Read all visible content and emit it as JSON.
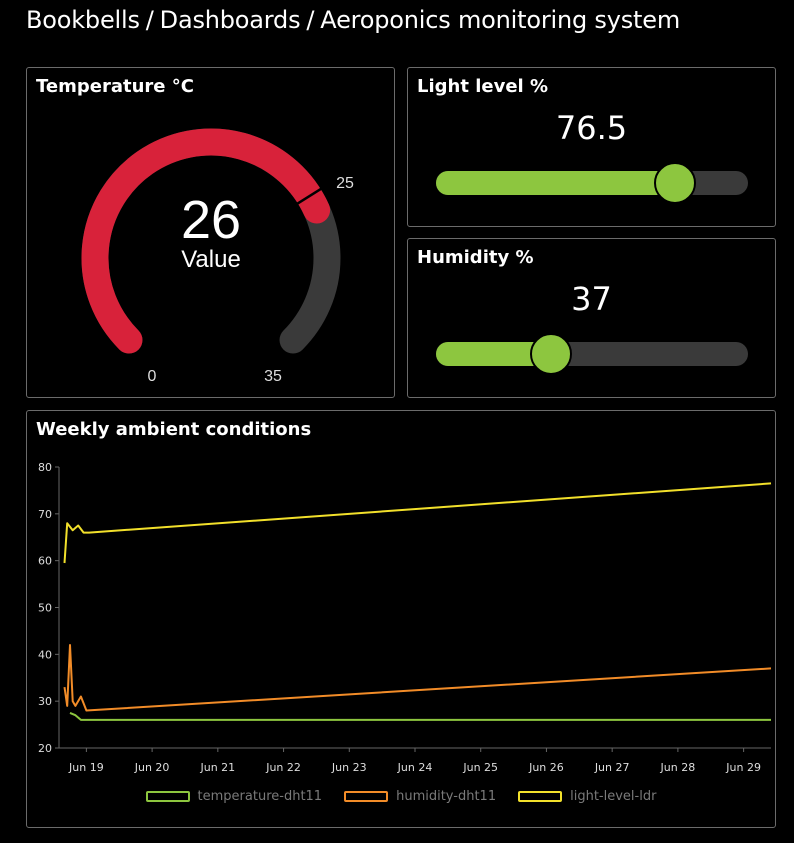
{
  "breadcrumb": {
    "items": [
      "Bookbells",
      "Dashboards",
      "Aeroponics monitoring system"
    ],
    "separator": "/"
  },
  "temperature": {
    "title": "Temperature °C",
    "value": "26",
    "caption": "Value",
    "min_label": "0",
    "max_label": "35",
    "threshold_label": "25",
    "min": 0,
    "max": 35,
    "current": 26,
    "threshold": 25,
    "colors": {
      "fill": "#d8223a",
      "track": "#3a3a3a",
      "marker": "#000000"
    }
  },
  "light": {
    "title": "Light level %",
    "value": "76.5",
    "level": 76.5,
    "color": "#8dc63f"
  },
  "humidity": {
    "title": "Humidity %",
    "value": "37",
    "level": 37,
    "color": "#8dc63f"
  },
  "chart_data": {
    "type": "line",
    "title": "Weekly ambient conditions",
    "xlabel": "",
    "ylabel": "",
    "ylim": [
      20,
      80
    ],
    "yticks": [
      "20",
      "30",
      "40",
      "50",
      "60",
      "70",
      "80"
    ],
    "xticks": [
      "Jun 19",
      "Jun 20",
      "Jun 21",
      "Jun 22",
      "Jun 23",
      "Jun 24",
      "Jun 25",
      "Jun 26",
      "Jun 27",
      "Jun 28",
      "Jun 29"
    ],
    "grid": false,
    "legend_position": "bottom",
    "series": [
      {
        "name": "temperature-dht11",
        "color": "#8dc63f",
        "points": [
          [
            "Jun 18 18:00",
            27.5
          ],
          [
            "Jun 18 20:00",
            27.0
          ],
          [
            "Jun 18 22:00",
            26.0
          ],
          [
            "Jun 19 12:00",
            26.0
          ],
          [
            "Jun 29 10:00",
            26.0
          ]
        ]
      },
      {
        "name": "humidity-dht11",
        "color": "#f28c28",
        "points": [
          [
            "Jun 18 16:00",
            33.0
          ],
          [
            "Jun 18 17:00",
            29.0
          ],
          [
            "Jun 18 18:00",
            42.0
          ],
          [
            "Jun 18 19:00",
            30.0
          ],
          [
            "Jun 18 20:00",
            29.0
          ],
          [
            "Jun 18 22:00",
            31.0
          ],
          [
            "Jun 19 00:00",
            28.0
          ],
          [
            "Jun 29 10:00",
            37.0
          ]
        ]
      },
      {
        "name": "light-level-ldr",
        "color": "#f2e02b",
        "points": [
          [
            "Jun 18 16:00",
            59.5
          ],
          [
            "Jun 18 17:00",
            68.0
          ],
          [
            "Jun 18 19:00",
            66.5
          ],
          [
            "Jun 18 21:00",
            67.5
          ],
          [
            "Jun 18 23:00",
            66.0
          ],
          [
            "Jun 19 01:00",
            66.0
          ],
          [
            "Jun 29 10:00",
            76.5
          ]
        ]
      }
    ]
  }
}
